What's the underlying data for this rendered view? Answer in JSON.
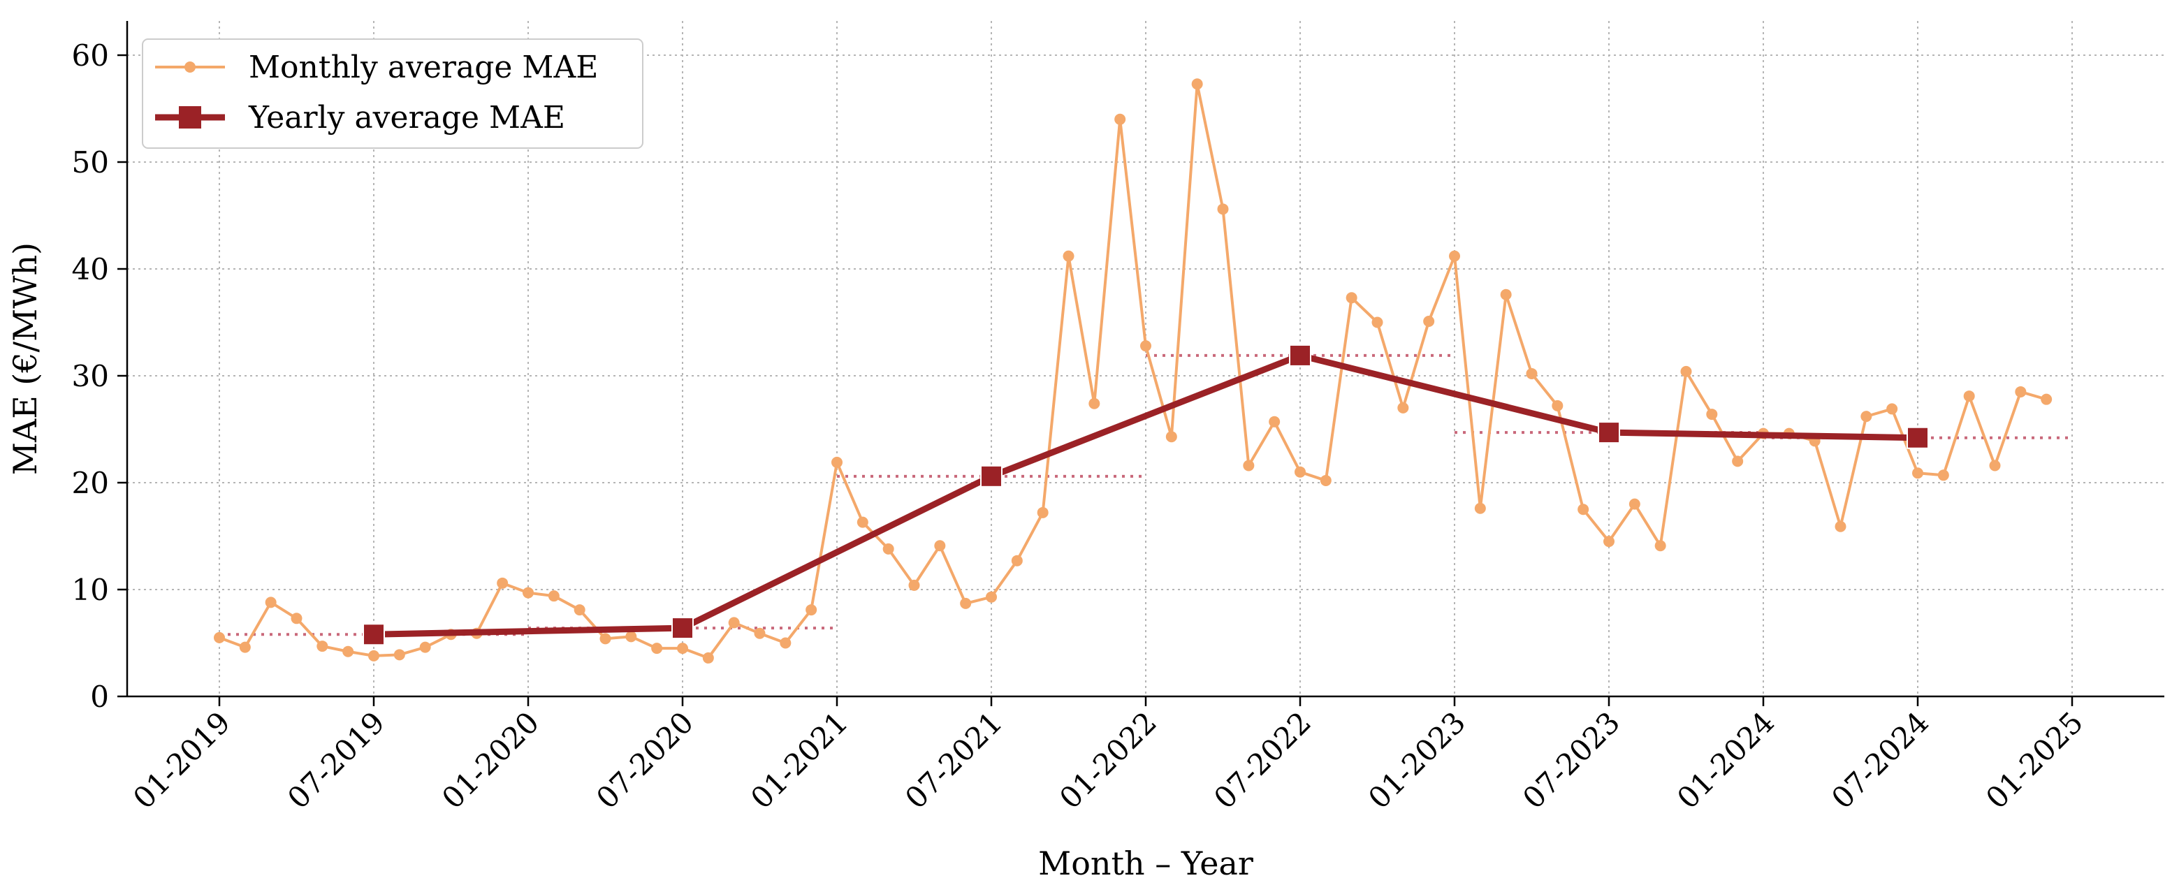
{
  "chart_data": {
    "type": "line",
    "xlabel": "Month – Year",
    "ylabel": "MAE  (€/MWh)",
    "ylim": [
      0,
      63
    ],
    "yticks": [
      0,
      10,
      20,
      30,
      40,
      50,
      60
    ],
    "xlim": [
      "2018-11",
      "2025-02"
    ],
    "xticks": [
      {
        "date": "2019-01",
        "label": "01-2019"
      },
      {
        "date": "2019-07",
        "label": "07-2019"
      },
      {
        "date": "2020-01",
        "label": "01-2020"
      },
      {
        "date": "2020-07",
        "label": "07-2020"
      },
      {
        "date": "2021-01",
        "label": "01-2021"
      },
      {
        "date": "2021-07",
        "label": "07-2021"
      },
      {
        "date": "2022-01",
        "label": "01-2022"
      },
      {
        "date": "2022-07",
        "label": "07-2022"
      },
      {
        "date": "2023-01",
        "label": "01-2023"
      },
      {
        "date": "2023-07",
        "label": "07-2023"
      },
      {
        "date": "2024-01",
        "label": "01-2024"
      },
      {
        "date": "2024-07",
        "label": "07-2024"
      },
      {
        "date": "2025-01",
        "label": "01-2025"
      }
    ],
    "grid": true,
    "legend_position": "top-left",
    "series": [
      {
        "name": "Monthly average MAE",
        "color": "#f4a86a",
        "marker": "circle",
        "points": [
          [
            "2019-01",
            5.5
          ],
          [
            "2019-02",
            4.6
          ],
          [
            "2019-03",
            8.8
          ],
          [
            "2019-04",
            7.3
          ],
          [
            "2019-05",
            4.7
          ],
          [
            "2019-06",
            4.2
          ],
          [
            "2019-07",
            3.8
          ],
          [
            "2019-08",
            3.9
          ],
          [
            "2019-09",
            4.6
          ],
          [
            "2019-10",
            5.8
          ],
          [
            "2019-11",
            5.9
          ],
          [
            "2019-12",
            10.6
          ],
          [
            "2020-01",
            9.7
          ],
          [
            "2020-02",
            9.4
          ],
          [
            "2020-03",
            8.1
          ],
          [
            "2020-04",
            5.4
          ],
          [
            "2020-05",
            5.6
          ],
          [
            "2020-06",
            4.5
          ],
          [
            "2020-07",
            4.5
          ],
          [
            "2020-08",
            3.6
          ],
          [
            "2020-09",
            6.9
          ],
          [
            "2020-10",
            5.9
          ],
          [
            "2020-11",
            5.0
          ],
          [
            "2020-12",
            8.1
          ],
          [
            "2021-01",
            21.9
          ],
          [
            "2021-02",
            16.3
          ],
          [
            "2021-03",
            13.8
          ],
          [
            "2021-04",
            10.4
          ],
          [
            "2021-05",
            14.1
          ],
          [
            "2021-06",
            8.7
          ],
          [
            "2021-07",
            9.3
          ],
          [
            "2021-08",
            12.7
          ],
          [
            "2021-09",
            17.2
          ],
          [
            "2021-10",
            41.2
          ],
          [
            "2021-11",
            27.4
          ],
          [
            "2021-12",
            54.0
          ],
          [
            "2022-01",
            32.8
          ],
          [
            "2022-02",
            24.3
          ],
          [
            "2022-03",
            57.3
          ],
          [
            "2022-04",
            45.6
          ],
          [
            "2022-05",
            21.6
          ],
          [
            "2022-06",
            25.7
          ],
          [
            "2022-07",
            21.0
          ],
          [
            "2022-08",
            20.2
          ],
          [
            "2022-09",
            37.3
          ],
          [
            "2022-10",
            35.0
          ],
          [
            "2022-11",
            27.0
          ],
          [
            "2022-12",
            35.1
          ],
          [
            "2023-01",
            41.2
          ],
          [
            "2023-02",
            17.6
          ],
          [
            "2023-03",
            37.6
          ],
          [
            "2023-04",
            30.2
          ],
          [
            "2023-05",
            27.2
          ],
          [
            "2023-06",
            17.5
          ],
          [
            "2023-07",
            14.5
          ],
          [
            "2023-08",
            18.0
          ],
          [
            "2023-09",
            14.1
          ],
          [
            "2023-10",
            30.4
          ],
          [
            "2023-11",
            26.4
          ],
          [
            "2023-12",
            22.0
          ],
          [
            "2024-01",
            24.6
          ],
          [
            "2024-02",
            24.6
          ],
          [
            "2024-03",
            23.9
          ],
          [
            "2024-04",
            15.9
          ],
          [
            "2024-05",
            26.2
          ],
          [
            "2024-06",
            26.9
          ],
          [
            "2024-07",
            20.9
          ],
          [
            "2024-08",
            20.7
          ],
          [
            "2024-09",
            28.1
          ],
          [
            "2024-10",
            21.6
          ],
          [
            "2024-11",
            28.5
          ],
          [
            "2024-12",
            27.8
          ]
        ]
      },
      {
        "name": "Yearly average MAE",
        "color": "#9b2226",
        "marker": "square",
        "points": [
          [
            "2019-07",
            5.8
          ],
          [
            "2020-07",
            6.4
          ],
          [
            "2021-07",
            20.6
          ],
          [
            "2022-07",
            31.9
          ],
          [
            "2023-07",
            24.7
          ],
          [
            "2024-07",
            24.2
          ]
        ]
      }
    ],
    "yearly_reference_lines": {
      "color": "#c9687a",
      "style": "dotted",
      "segments": [
        {
          "from": "2019-01",
          "to": "2020-01",
          "value": 5.8
        },
        {
          "from": "2020-01",
          "to": "2021-01",
          "value": 6.4
        },
        {
          "from": "2021-01",
          "to": "2022-01",
          "value": 20.6
        },
        {
          "from": "2022-01",
          "to": "2023-01",
          "value": 31.9
        },
        {
          "from": "2023-01",
          "to": "2024-01",
          "value": 24.7
        },
        {
          "from": "2024-01",
          "to": "2025-01",
          "value": 24.2
        }
      ]
    }
  }
}
